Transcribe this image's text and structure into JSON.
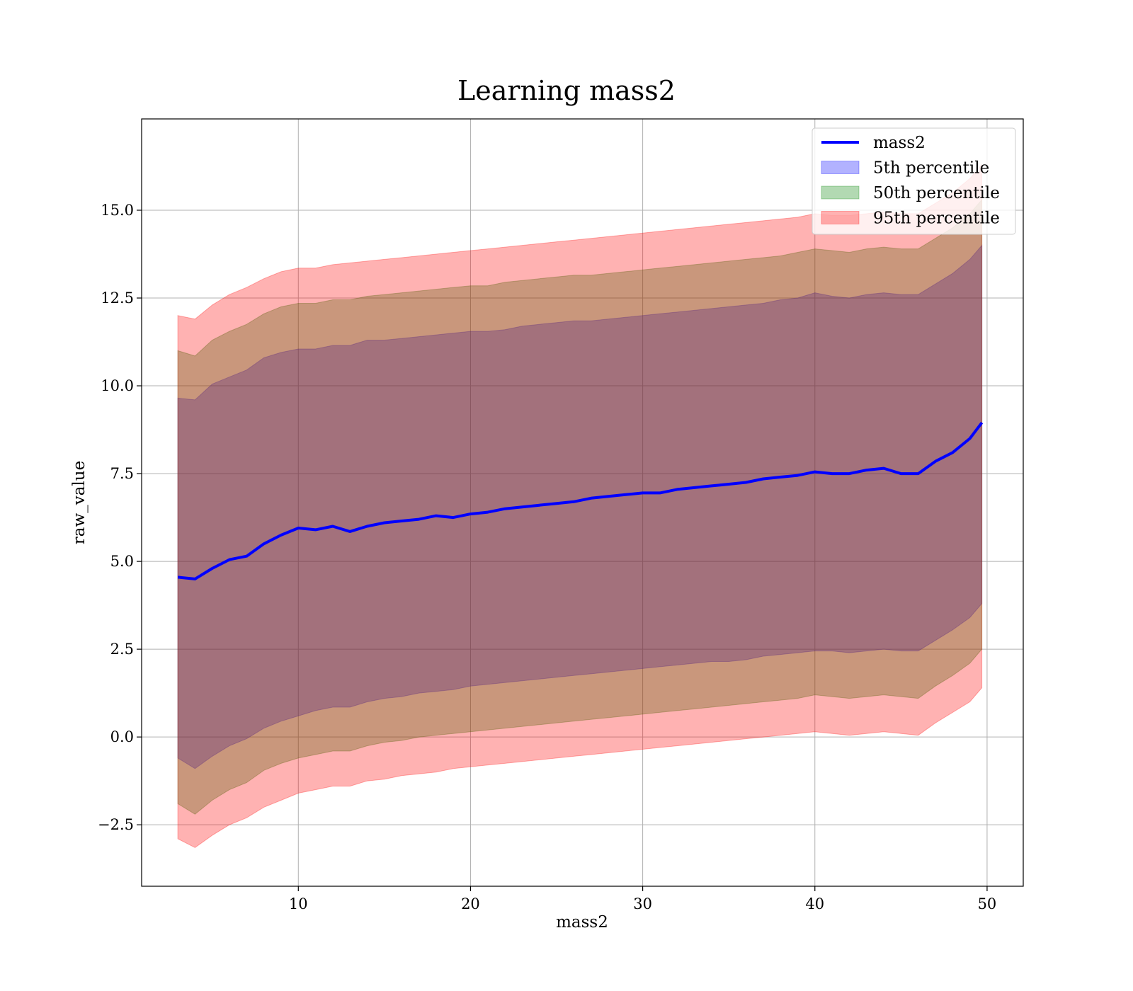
{
  "chart_data": {
    "type": "area",
    "title": "Learning mass2",
    "xlabel": "mass2",
    "ylabel": "raw_value",
    "xlim": [
      0.9,
      52.1
    ],
    "ylim": [
      -4.25,
      17.6
    ],
    "xticks": [
      10,
      20,
      30,
      40,
      50
    ],
    "xtick_labels": [
      "10",
      "20",
      "30",
      "40",
      "50"
    ],
    "yticks": [
      -2.5,
      0.0,
      2.5,
      5.0,
      7.5,
      10.0,
      12.5,
      15.0
    ],
    "ytick_labels": [
      "−2.5",
      "0.0",
      "2.5",
      "5.0",
      "7.5",
      "10.0",
      "12.5",
      "15.0"
    ],
    "grid": true,
    "legend_position": "top-right",
    "x": [
      3.0,
      4.0,
      5.0,
      6.0,
      7.0,
      8.0,
      9.0,
      10.0,
      11.0,
      12.0,
      13.0,
      14.0,
      15.0,
      16.0,
      17.0,
      18.0,
      19.0,
      20.0,
      21.0,
      22.0,
      23.0,
      24.0,
      25.0,
      26.0,
      27.0,
      28.0,
      29.0,
      30.0,
      31.0,
      32.0,
      33.0,
      34.0,
      35.0,
      36.0,
      37.0,
      38.0,
      39.0,
      40.0,
      41.0,
      42.0,
      43.0,
      44.0,
      45.0,
      46.0,
      47.0,
      48.0,
      49.0,
      49.7
    ],
    "series": [
      {
        "name": "mass2",
        "kind": "line",
        "color": "#0000ff",
        "values": [
          4.55,
          4.5,
          4.8,
          5.05,
          5.15,
          5.5,
          5.75,
          5.95,
          5.9,
          6.0,
          5.85,
          6.0,
          6.1,
          6.15,
          6.2,
          6.3,
          6.25,
          6.35,
          6.4,
          6.5,
          6.55,
          6.6,
          6.65,
          6.7,
          6.8,
          6.85,
          6.9,
          6.95,
          6.95,
          7.05,
          7.1,
          7.15,
          7.2,
          7.25,
          7.35,
          7.4,
          7.45,
          7.55,
          7.5,
          7.5,
          7.6,
          7.65,
          7.5,
          7.5,
          7.85,
          8.1,
          8.5,
          8.95
        ]
      },
      {
        "name": "5th percentile",
        "kind": "band",
        "color": "#0000ff",
        "upper": [
          9.65,
          9.6,
          10.05,
          10.25,
          10.45,
          10.8,
          10.95,
          11.05,
          11.05,
          11.15,
          11.15,
          11.3,
          11.3,
          11.35,
          11.4,
          11.45,
          11.5,
          11.55,
          11.55,
          11.6,
          11.7,
          11.75,
          11.8,
          11.85,
          11.85,
          11.9,
          11.95,
          12.0,
          12.05,
          12.1,
          12.15,
          12.2,
          12.25,
          12.3,
          12.35,
          12.45,
          12.5,
          12.65,
          12.55,
          12.5,
          12.6,
          12.65,
          12.6,
          12.6,
          12.9,
          13.2,
          13.6,
          14.0
        ],
        "lower": [
          -0.6,
          -0.9,
          -0.55,
          -0.25,
          -0.05,
          0.25,
          0.45,
          0.6,
          0.75,
          0.85,
          0.85,
          1.0,
          1.1,
          1.15,
          1.25,
          1.3,
          1.35,
          1.45,
          1.5,
          1.55,
          1.6,
          1.65,
          1.7,
          1.75,
          1.8,
          1.85,
          1.9,
          1.95,
          2.0,
          2.05,
          2.1,
          2.15,
          2.15,
          2.2,
          2.3,
          2.35,
          2.4,
          2.45,
          2.45,
          2.4,
          2.45,
          2.5,
          2.45,
          2.45,
          2.75,
          3.05,
          3.4,
          3.8
        ]
      },
      {
        "name": "50th percentile",
        "kind": "band",
        "color": "#008000",
        "upper": [
          11.0,
          10.85,
          11.3,
          11.55,
          11.75,
          12.05,
          12.25,
          12.35,
          12.35,
          12.45,
          12.45,
          12.55,
          12.6,
          12.65,
          12.7,
          12.75,
          12.8,
          12.85,
          12.85,
          12.95,
          13.0,
          13.05,
          13.1,
          13.15,
          13.15,
          13.2,
          13.25,
          13.3,
          13.35,
          13.4,
          13.45,
          13.5,
          13.55,
          13.6,
          13.65,
          13.7,
          13.8,
          13.9,
          13.85,
          13.8,
          13.9,
          13.95,
          13.9,
          13.9,
          14.2,
          14.5,
          14.9,
          15.3
        ],
        "lower": [
          -1.9,
          -2.2,
          -1.8,
          -1.5,
          -1.3,
          -0.95,
          -0.75,
          -0.6,
          -0.5,
          -0.4,
          -0.4,
          -0.25,
          -0.15,
          -0.1,
          0.0,
          0.05,
          0.1,
          0.15,
          0.2,
          0.25,
          0.3,
          0.35,
          0.4,
          0.45,
          0.5,
          0.55,
          0.6,
          0.65,
          0.7,
          0.75,
          0.8,
          0.85,
          0.9,
          0.95,
          1.0,
          1.05,
          1.1,
          1.2,
          1.15,
          1.1,
          1.15,
          1.2,
          1.15,
          1.1,
          1.45,
          1.75,
          2.1,
          2.5
        ]
      },
      {
        "name": "95th percentile",
        "kind": "band",
        "color": "#ff0000",
        "upper": [
          12.0,
          11.9,
          12.3,
          12.6,
          12.8,
          13.05,
          13.25,
          13.35,
          13.35,
          13.45,
          13.5,
          13.55,
          13.6,
          13.65,
          13.7,
          13.75,
          13.8,
          13.85,
          13.9,
          13.95,
          14.0,
          14.05,
          14.1,
          14.15,
          14.2,
          14.25,
          14.3,
          14.35,
          14.4,
          14.45,
          14.5,
          14.55,
          14.6,
          14.65,
          14.7,
          14.75,
          14.8,
          14.9,
          14.85,
          14.85,
          14.9,
          14.95,
          14.9,
          14.9,
          15.2,
          15.5,
          15.9,
          16.3
        ],
        "lower": [
          -2.9,
          -3.15,
          -2.8,
          -2.5,
          -2.3,
          -2.0,
          -1.8,
          -1.6,
          -1.5,
          -1.4,
          -1.4,
          -1.25,
          -1.2,
          -1.1,
          -1.05,
          -1.0,
          -0.9,
          -0.85,
          -0.8,
          -0.75,
          -0.7,
          -0.65,
          -0.6,
          -0.55,
          -0.5,
          -0.45,
          -0.4,
          -0.35,
          -0.3,
          -0.25,
          -0.2,
          -0.15,
          -0.1,
          -0.05,
          0.0,
          0.05,
          0.1,
          0.15,
          0.1,
          0.05,
          0.1,
          0.15,
          0.1,
          0.05,
          0.4,
          0.7,
          1.0,
          1.4
        ]
      }
    ]
  }
}
